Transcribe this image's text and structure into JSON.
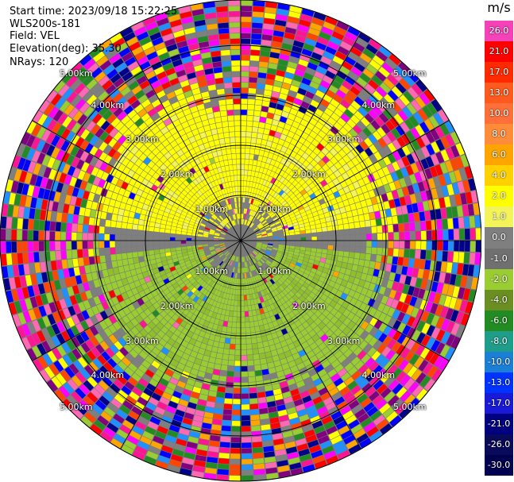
{
  "header": {
    "start_time": "Start time: 2023/09/18 15:22:25",
    "instrument": "WLS200s-181",
    "field": "Field: VEL",
    "elevation": "Elevation(deg): 35.30",
    "nrays": "NRays: 120"
  },
  "colorbar": {
    "units": "m/s",
    "levels": [
      {
        "label": "26.0",
        "color": "#f542b8"
      },
      {
        "label": "21.0",
        "color": "#ff0000"
      },
      {
        "label": "17.0",
        "color": "#ff2a00"
      },
      {
        "label": "13.0",
        "color": "#ff5a1e"
      },
      {
        "label": "10.0",
        "color": "#ff6f3a"
      },
      {
        "label": "8.0",
        "color": "#ff8c3a"
      },
      {
        "label": "6.0",
        "color": "#ffa500"
      },
      {
        "label": "4.0",
        "color": "#ffd100"
      },
      {
        "label": "2.0",
        "color": "#ffff00"
      },
      {
        "label": "1.0",
        "color": "#f3f35a"
      },
      {
        "label": "0.0",
        "color": "#7f7f7f"
      },
      {
        "label": "-1.0",
        "color": "#707070"
      },
      {
        "label": "-2.0",
        "color": "#9acd32"
      },
      {
        "label": "-4.0",
        "color": "#6b8e23"
      },
      {
        "label": "-6.0",
        "color": "#228b22"
      },
      {
        "label": "-8.0",
        "color": "#1e9e8a"
      },
      {
        "label": "-10.0",
        "color": "#1c7fd6"
      },
      {
        "label": "-13.0",
        "color": "#0033ff"
      },
      {
        "label": "-17.0",
        "color": "#1a1ad6"
      },
      {
        "label": "-21.0",
        "color": "#000080"
      },
      {
        "label": "-26.0",
        "color": "#0a0a5a"
      },
      {
        "label": "-30.0",
        "color": "#000050"
      }
    ]
  },
  "chart_data": {
    "type": "heatmap",
    "title": "",
    "field": "VEL",
    "units": "m/s",
    "elevation_deg": 35.3,
    "nrays": 120,
    "range_rings_km": [
      "1.00km",
      "2.00km",
      "3.00km",
      "4.00km",
      "5.00km"
    ],
    "grid": true,
    "pattern": {
      "north_half": "positive (yellow, ~1-2 m/s) within ~3 km",
      "south_half": "negative (green, ~-2 to -4 m/s) within ~3 km",
      "near_center": "near zero (gray)",
      "far_range": "noisy / random values beyond ~3.5 km"
    },
    "palette": [
      "#f542b8",
      "#ff0000",
      "#ff2a00",
      "#ff5a1e",
      "#ff6f3a",
      "#ff8c3a",
      "#ffa500",
      "#ffd100",
      "#ffff00",
      "#f3f35a",
      "#7f7f7f",
      "#707070",
      "#9acd32",
      "#6b8e23",
      "#228b22",
      "#1e9e8a",
      "#1c7fd6",
      "#0033ff",
      "#1a1ad6",
      "#000080",
      "#0a0a5a",
      "#000050"
    ],
    "noise_palette": [
      "#ff1493",
      "#ff00ff",
      "#ff0000",
      "#ffa500",
      "#ffff00",
      "#0000ff",
      "#00008b",
      "#228b22",
      "#9acd32",
      "#7f7f7f",
      "#ff69b4",
      "#800080",
      "#ff4500",
      "#1e90ff"
    ]
  }
}
